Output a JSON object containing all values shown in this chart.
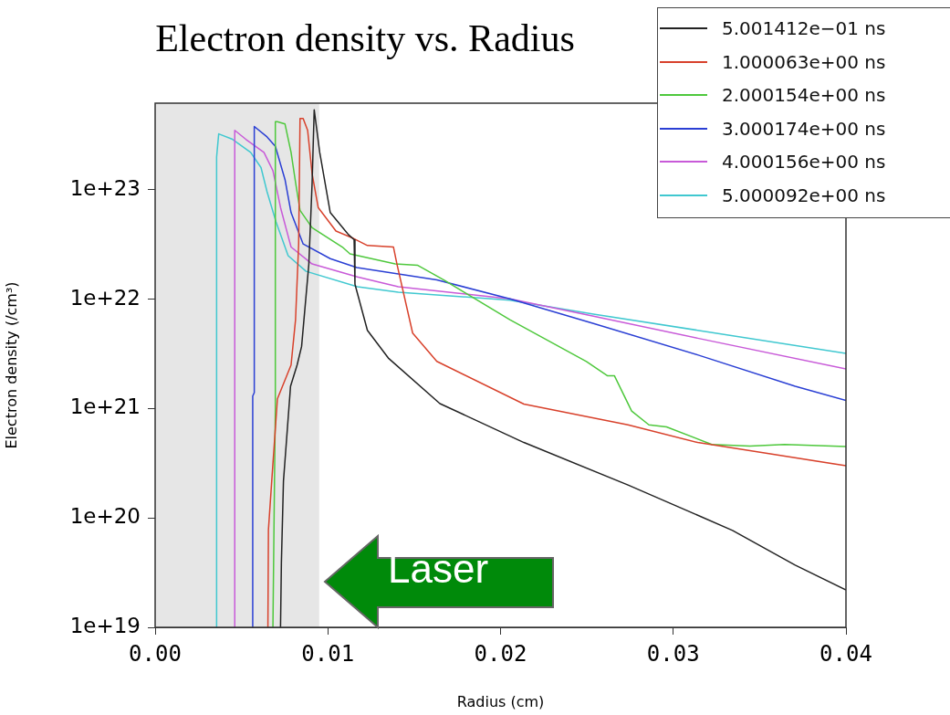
{
  "chart_data": {
    "type": "line",
    "title": "Electron density vs. Radius",
    "xlabel": "Radius (cm)",
    "ylabel": "Electron density (/cm³)",
    "log": "y",
    "xlim": [
      0,
      0.04
    ],
    "xticks": [
      {
        "value": 0,
        "label": "0.00"
      },
      {
        "value": 0.01,
        "label": "0.01"
      },
      {
        "value": 0.02,
        "label": "0.02"
      },
      {
        "value": 0.03,
        "label": "0.03"
      },
      {
        "value": 0.04,
        "label": "0.04"
      }
    ],
    "ylim": [
      1e+19,
      6.2e+23
    ],
    "yticks": [
      {
        "value": 1e+19,
        "label": "1e+19"
      },
      {
        "value": 1e+20,
        "label": "1e+20"
      },
      {
        "value": 1e+21,
        "label": "1e+21"
      },
      {
        "value": 1e+22,
        "label": "1e+22"
      },
      {
        "value": 1e+23,
        "label": "1e+23"
      }
    ],
    "legend": "top right",
    "grid": false,
    "bands": [
      {
        "axis": "x",
        "from": 0,
        "to": 0.0095,
        "color": "#e6e6e6"
      }
    ],
    "annotations": [
      "Laser"
    ],
    "series": [
      {
        "name": "5.001412e−01 ns",
        "color": "#222222",
        "x": [
          0.00726,
          0.00731,
          0.00743,
          0.00784,
          0.00822,
          0.00848,
          0.0089,
          0.00909,
          0.00921,
          0.00953,
          0.01014,
          0.01119,
          0.01152,
          0.01157,
          0.01229,
          0.0135,
          0.01649,
          0.02135,
          0.02738,
          0.03343,
          0.03706,
          0.04
        ],
        "values": [
          1e+19,
          3.85e+19,
          2.17e+20,
          1.6e+21,
          2.5e+21,
          3.7e+21,
          2.1e+22,
          1.17e+23,
          5.4e+23,
          2.2e+23,
          6.2e+22,
          3.9e+22,
          3.5e+22,
          1.37e+22,
          5.2e+21,
          2.9e+21,
          1.11e+21,
          4.9e+20,
          2e+20,
          7.7e+19,
          3.7e+19,
          2.2e+19
        ]
      },
      {
        "name": "1.000063e+00 ns",
        "color": "#d8412b",
        "x": [
          0.00653,
          0.00656,
          0.00674,
          0.00708,
          0.00787,
          0.00813,
          0.00831,
          0.00839,
          0.00857,
          0.00883,
          0.00909,
          0.00944,
          0.01047,
          0.01148,
          0.01229,
          0.0138,
          0.014,
          0.01491,
          0.01631,
          0.02135,
          0.02738,
          0.03141,
          0.03545,
          0.04
        ],
        "values": [
          1e+19,
          7.8e+19,
          2.05e+20,
          1.23e+21,
          2.5e+21,
          6.5e+21,
          3.2e+22,
          4.5e+23,
          4.5e+23,
          3.5e+23,
          1.4e+23,
          6.9e+22,
          4.2e+22,
          3.6e+22,
          3.1e+22,
          3e+22,
          2.1e+22,
          4.9e+21,
          2.7e+21,
          1.1e+21,
          7.1e+20,
          4.9e+20,
          3.9e+20,
          3e+20
        ]
      },
      {
        "name": "2.000154e+00 ns",
        "color": "#4ec83c",
        "x": [
          0.00682,
          0.00691,
          0.00696,
          0.00696,
          0.00707,
          0.00752,
          0.00787,
          0.00813,
          0.00839,
          0.00909,
          0.01084,
          0.01128,
          0.0139,
          0.01521,
          0.01672,
          0.02054,
          0.02497,
          0.02618,
          0.02659,
          0.02759,
          0.02859,
          0.02961,
          0.03223,
          0.03444,
          0.03644,
          0.04
        ],
        "values": [
          1e+19,
          2.17e+20,
          1e+21,
          4.2e+23,
          4.2e+23,
          4e+23,
          2.2e+23,
          1.17e+23,
          6.5e+22,
          4.5e+22,
          3e+22,
          2.6e+22,
          2.1e+22,
          2.04e+22,
          1.5e+22,
          6.5e+21,
          2.7e+21,
          2e+21,
          2e+21,
          9.5e+20,
          7.1e+20,
          6.8e+20,
          4.7e+20,
          4.55e+20,
          4.7e+20,
          4.5e+20
        ]
      },
      {
        "name": "3.000174e+00 ns",
        "color": "#2a3fd4",
        "x": [
          0.00565,
          0.00565,
          0.00574,
          0.00574,
          0.00648,
          0.00696,
          0.00752,
          0.00787,
          0.00857,
          0.01014,
          0.01168,
          0.01631,
          0.02054,
          0.02538,
          0.03141,
          0.03706,
          0.04
        ],
        "values": [
          1e+19,
          1.3e+21,
          1.4e+21,
          3.8e+23,
          3.05e+23,
          2.5e+23,
          1.24e+23,
          6.2e+22,
          3.2e+22,
          2.35e+22,
          1.95e+22,
          1.5e+22,
          1.01e+22,
          6e+21,
          3.1e+21,
          1.6e+21,
          1.19e+21
        ]
      },
      {
        "name": "4.000156e+00 ns",
        "color": "#c85ad8",
        "x": [
          0.00461,
          0.00461,
          0.00525,
          0.0063,
          0.00682,
          0.00726,
          0.00787,
          0.00909,
          0.01171,
          0.01408,
          0.02054,
          0.02538,
          0.03141,
          0.04
        ],
        "values": [
          1e+19,
          3.5e+23,
          2.9e+23,
          2.2e+23,
          1.5e+23,
          6.9e+22,
          3e+22,
          2.1e+22,
          1.6e+22,
          1.3e+22,
          1.01e+22,
          7e+21,
          4.4e+21,
          2.3e+21
        ]
      },
      {
        "name": "5.000092e+00 ns",
        "color": "#40c8d0",
        "x": [
          0.00356,
          0.00356,
          0.00368,
          0.00448,
          0.00553,
          0.00613,
          0.00648,
          0.007,
          0.0077,
          0.00874,
          0.01171,
          0.01408,
          0.02054,
          0.02538,
          0.03141,
          0.04
        ],
        "values": [
          1e+19,
          2e+23,
          3.25e+23,
          2.9e+23,
          2.2e+23,
          1.6e+23,
          9.6e+22,
          5.1e+22,
          2.5e+22,
          1.8e+22,
          1.3e+22,
          1.16e+22,
          9.8e+21,
          7.3e+21,
          5.2e+21,
          3.2e+21
        ]
      }
    ]
  }
}
